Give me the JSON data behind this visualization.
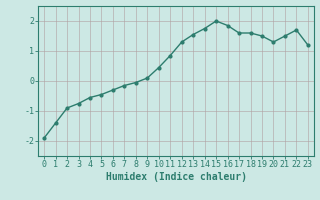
{
  "x": [
    0,
    1,
    2,
    3,
    4,
    5,
    6,
    7,
    8,
    9,
    10,
    11,
    12,
    13,
    14,
    15,
    16,
    17,
    18,
    19,
    20,
    21,
    22,
    23
  ],
  "y": [
    -1.9,
    -1.4,
    -0.9,
    -0.75,
    -0.55,
    -0.45,
    -0.3,
    -0.15,
    -0.05,
    0.1,
    0.45,
    0.85,
    1.3,
    1.55,
    1.75,
    2.0,
    1.85,
    1.6,
    1.6,
    1.5,
    1.3,
    1.5,
    1.7,
    1.2
  ],
  "line_color": "#2d7d6e",
  "marker": "o",
  "marker_size": 2.0,
  "line_width": 1.0,
  "bg_color": "#cce8e4",
  "grid_color": "#b0a0a0",
  "tick_color": "#2d7d6e",
  "label_color": "#2d7d6e",
  "xlabel": "Humidex (Indice chaleur)",
  "xlabel_fontsize": 7,
  "ylim": [
    -2.5,
    2.5
  ],
  "xlim": [
    -0.5,
    23.5
  ],
  "yticks": [
    -2,
    -1,
    0,
    1,
    2
  ],
  "xticks": [
    0,
    1,
    2,
    3,
    4,
    5,
    6,
    7,
    8,
    9,
    10,
    11,
    12,
    13,
    14,
    15,
    16,
    17,
    18,
    19,
    20,
    21,
    22,
    23
  ],
  "tick_fontsize": 6.0,
  "spine_color": "#2d7d6e"
}
